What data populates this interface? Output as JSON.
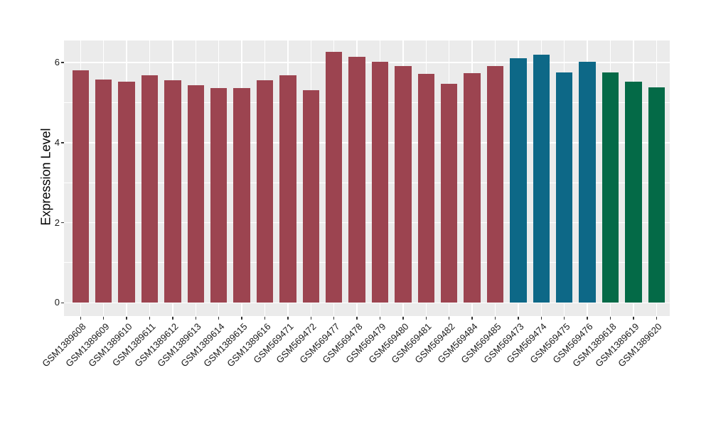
{
  "chart_data": {
    "type": "bar",
    "title": "",
    "xlabel": "",
    "ylabel": "Expression Level",
    "categories": [
      "GSM1389608",
      "GSM1389609",
      "GSM1389610",
      "GSM1389611",
      "GSM1389612",
      "GSM1389613",
      "GSM1389614",
      "GSM1389615",
      "GSM1389616",
      "GSM569471",
      "GSM569472",
      "GSM569477",
      "GSM569478",
      "GSM569479",
      "GSM569480",
      "GSM569481",
      "GSM569482",
      "GSM569484",
      "GSM569485",
      "GSM569473",
      "GSM569474",
      "GSM569475",
      "GSM569476",
      "GSM1389618",
      "GSM1389619",
      "GSM1389620"
    ],
    "values": [
      5.81,
      5.57,
      5.53,
      5.68,
      5.56,
      5.43,
      5.37,
      5.37,
      5.56,
      5.68,
      5.31,
      6.27,
      6.14,
      6.01,
      5.92,
      5.71,
      5.46,
      5.73,
      5.92,
      6.11,
      6.2,
      5.75,
      6.01,
      5.75,
      5.52,
      5.38
    ],
    "bar_color_keys": [
      "red",
      "red",
      "red",
      "red",
      "red",
      "red",
      "red",
      "red",
      "red",
      "red",
      "red",
      "red",
      "red",
      "red",
      "red",
      "red",
      "red",
      "red",
      "red",
      "blue",
      "blue",
      "blue",
      "blue",
      "green",
      "green",
      "green"
    ],
    "colors": {
      "red": "#9C4450",
      "blue": "#0D6887",
      "green": "#046A47",
      "panel_bg": "#EBEBEB",
      "grid": "#FFFFFF",
      "tick_mark": "#333333",
      "tick_label": "#1A1A1A",
      "axis_title": "#000000",
      "figure_bg": "#FFFFFF"
    },
    "yticks": [
      "0",
      "2",
      "4",
      "6"
    ],
    "ytick_values": [
      0,
      2,
      4,
      6
    ],
    "ytick_minor_values": [
      1,
      3,
      5
    ],
    "axis_range": [
      -0.33,
      6.55
    ],
    "grid": true,
    "legend_position": "none",
    "x_label_rotation_deg": 45
  }
}
